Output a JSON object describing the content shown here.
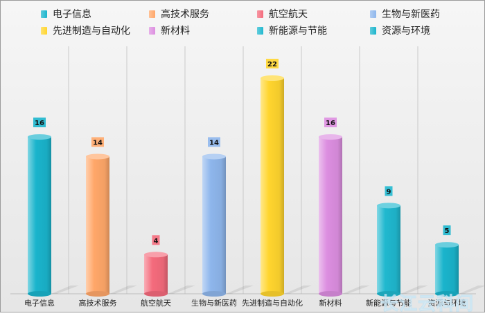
{
  "chart_data": {
    "type": "bar",
    "categories": [
      "电子信息",
      "高技术服务",
      "航空航天",
      "生物与新医药",
      "先进制造与自动化",
      "新材料",
      "新能源与节能",
      "资源与环境"
    ],
    "values": [
      16,
      14,
      4,
      14,
      22,
      16,
      9,
      5
    ],
    "colors": [
      "#1ab4cc",
      "#ffa769",
      "#f46b7c",
      "#8eb6ec",
      "#ffd52e",
      "#dc8ee0",
      "#20b8cf",
      "#1ab4cc"
    ],
    "ylim": [
      0,
      24
    ],
    "legend_position": "top",
    "grid": "vertical separators between categories"
  },
  "watermark": "长江云科间"
}
